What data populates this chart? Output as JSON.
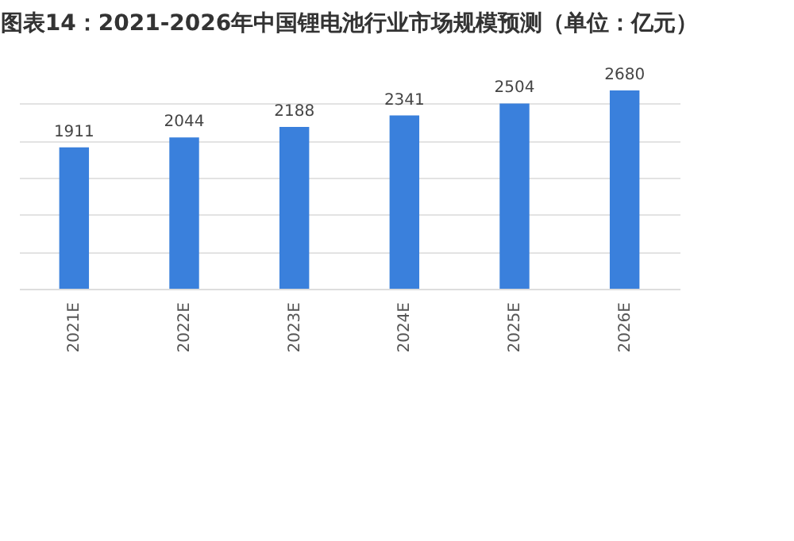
{
  "chart_data": {
    "type": "bar",
    "title": "图表14：2021-2026年中国锂电池行业市场规模预测（单位：亿元）",
    "categories": [
      "2021E",
      "2022E",
      "2023E",
      "2024E",
      "2025E",
      "2026E"
    ],
    "values": [
      1911,
      2044,
      2188,
      2341,
      2504,
      2680
    ],
    "color": "#3a80dc",
    "data_labels": true,
    "grid": "y"
  }
}
